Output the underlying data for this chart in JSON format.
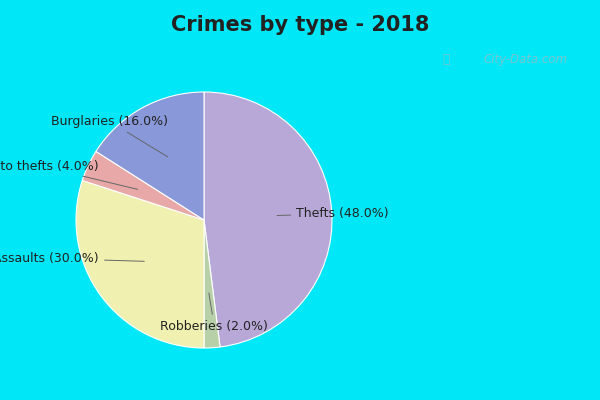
{
  "title": "Crimes by type - 2018",
  "slices": [
    {
      "label": "Thefts",
      "pct": 48.0,
      "color": "#b8a8d8"
    },
    {
      "label": "Robberies",
      "pct": 2.0,
      "color": "#b8d0a8"
    },
    {
      "label": "Assaults",
      "pct": 30.0,
      "color": "#f0f0b0"
    },
    {
      "label": "Auto thefts",
      "pct": 4.0,
      "color": "#e8a8a8"
    },
    {
      "label": "Burglaries",
      "pct": 16.0,
      "color": "#8898d8"
    }
  ],
  "background_border": "#00e8f8",
  "background_inner": "#e8f8ec",
  "title_fontsize": 15,
  "label_fontsize": 9,
  "watermark": "City-Data.com",
  "border_width": 0.015
}
